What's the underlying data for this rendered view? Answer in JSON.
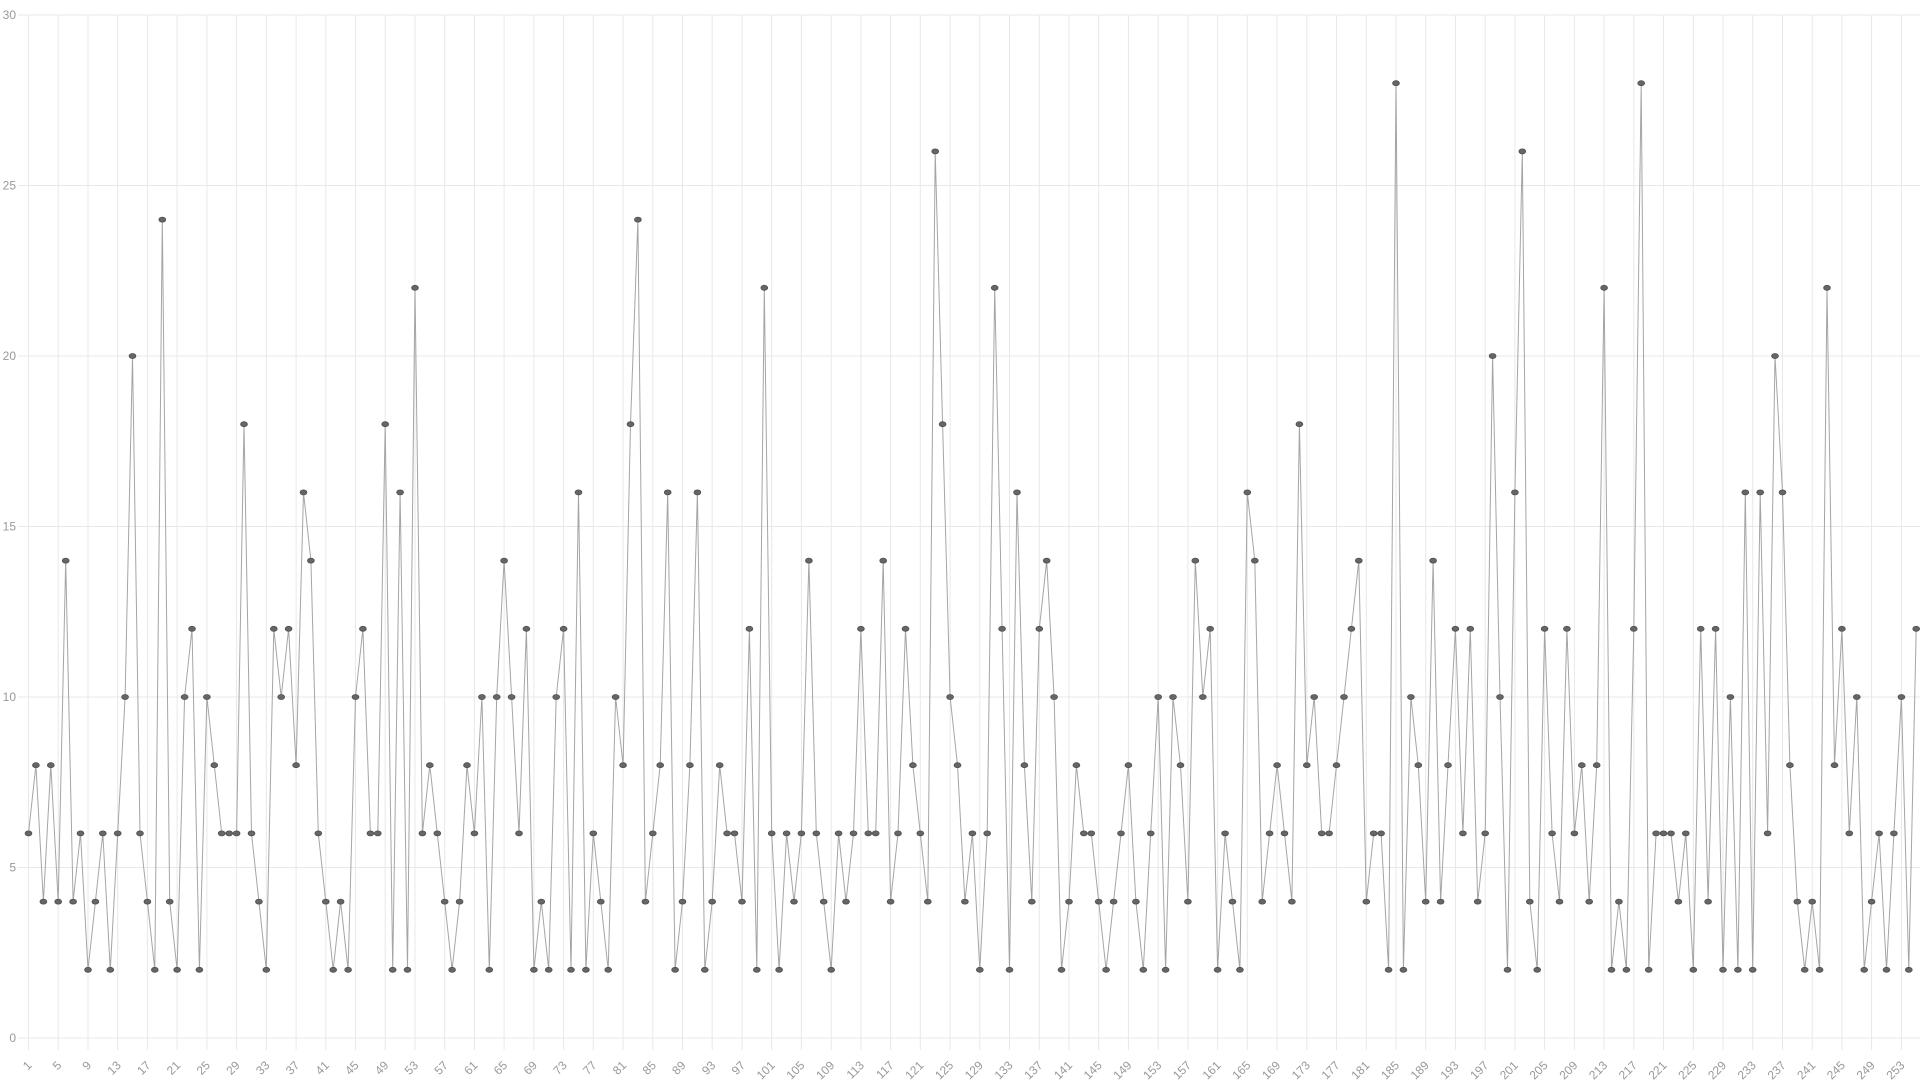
{
  "chart_data": {
    "type": "line",
    "title": "",
    "xlabel": "",
    "ylabel": "",
    "x_range": [
      1,
      255
    ],
    "ylim": [
      0,
      30
    ],
    "grid": true,
    "legend": "none",
    "marker": "ellipse-dot",
    "y_ticks": [
      0,
      5,
      10,
      15,
      20,
      25,
      30
    ],
    "x_ticks": [
      1,
      5,
      9,
      13,
      17,
      21,
      25,
      29,
      33,
      37,
      41,
      45,
      49,
      53,
      57,
      61,
      65,
      69,
      73,
      77,
      81,
      85,
      89,
      93,
      97,
      101,
      105,
      109,
      113,
      117,
      121,
      125,
      129,
      133,
      137,
      141,
      145,
      149,
      153,
      157,
      161,
      165,
      169,
      173,
      177,
      181,
      185,
      189,
      193,
      197,
      201,
      205,
      209,
      213,
      217,
      221,
      225,
      229,
      233,
      237,
      241,
      245,
      249,
      253
    ],
    "values": [
      6,
      8,
      4,
      8,
      4,
      14,
      4,
      6,
      2,
      4,
      6,
      2,
      6,
      10,
      20,
      6,
      4,
      2,
      24,
      4,
      2,
      10,
      12,
      2,
      10,
      8,
      6,
      6,
      6,
      18,
      6,
      4,
      2,
      12,
      10,
      12,
      8,
      16,
      14,
      6,
      4,
      2,
      4,
      2,
      10,
      12,
      6,
      6,
      18,
      2,
      16,
      2,
      22,
      6,
      8,
      6,
      4,
      2,
      4,
      8,
      6,
      10,
      2,
      10,
      14,
      10,
      6,
      12,
      2,
      4,
      2,
      10,
      12,
      2,
      16,
      2,
      6,
      4,
      2,
      10,
      8,
      18,
      24,
      4,
      6,
      8,
      16,
      2,
      4,
      8,
      16,
      2,
      4,
      8,
      6,
      6,
      4,
      12,
      2,
      22,
      6,
      2,
      6,
      4,
      6,
      14,
      6,
      4,
      2,
      6,
      4,
      6,
      12,
      6,
      6,
      14,
      4,
      6,
      12,
      8,
      6,
      4,
      26,
      18,
      10,
      8,
      4,
      6,
      2,
      6,
      22,
      12,
      2,
      16,
      8,
      4,
      12,
      14,
      10,
      2,
      4,
      8,
      6,
      6,
      4,
      2,
      4,
      6,
      8,
      4,
      2,
      6,
      10,
      2,
      10,
      8,
      4,
      14,
      10,
      12,
      2,
      6,
      4,
      2,
      16,
      14,
      4,
      6,
      8,
      6,
      4,
      18,
      8,
      10,
      6,
      6,
      8,
      10,
      12,
      14,
      4,
      6,
      6,
      2,
      28,
      2,
      10,
      8,
      4,
      14,
      4,
      8,
      12,
      6,
      12,
      4,
      6,
      20,
      10,
      2,
      16,
      26,
      4,
      2,
      12,
      6,
      4,
      12,
      6,
      8,
      4,
      8,
      22,
      2,
      4,
      2,
      12,
      28,
      2,
      6,
      6,
      6,
      4,
      6,
      2,
      12,
      4,
      12,
      2,
      10,
      2,
      16,
      2,
      16,
      6,
      20,
      16,
      8,
      4,
      2,
      4,
      2,
      22,
      8,
      12,
      6,
      10,
      2,
      4,
      6,
      2,
      6,
      10,
      2,
      12
    ],
    "colors": {
      "background": "#ffffff",
      "grid": "#e8e8e8",
      "line": "#9b9b9b",
      "point_fill": "#666666",
      "point_stroke": "#4f4f4f",
      "label": "#999999"
    }
  }
}
